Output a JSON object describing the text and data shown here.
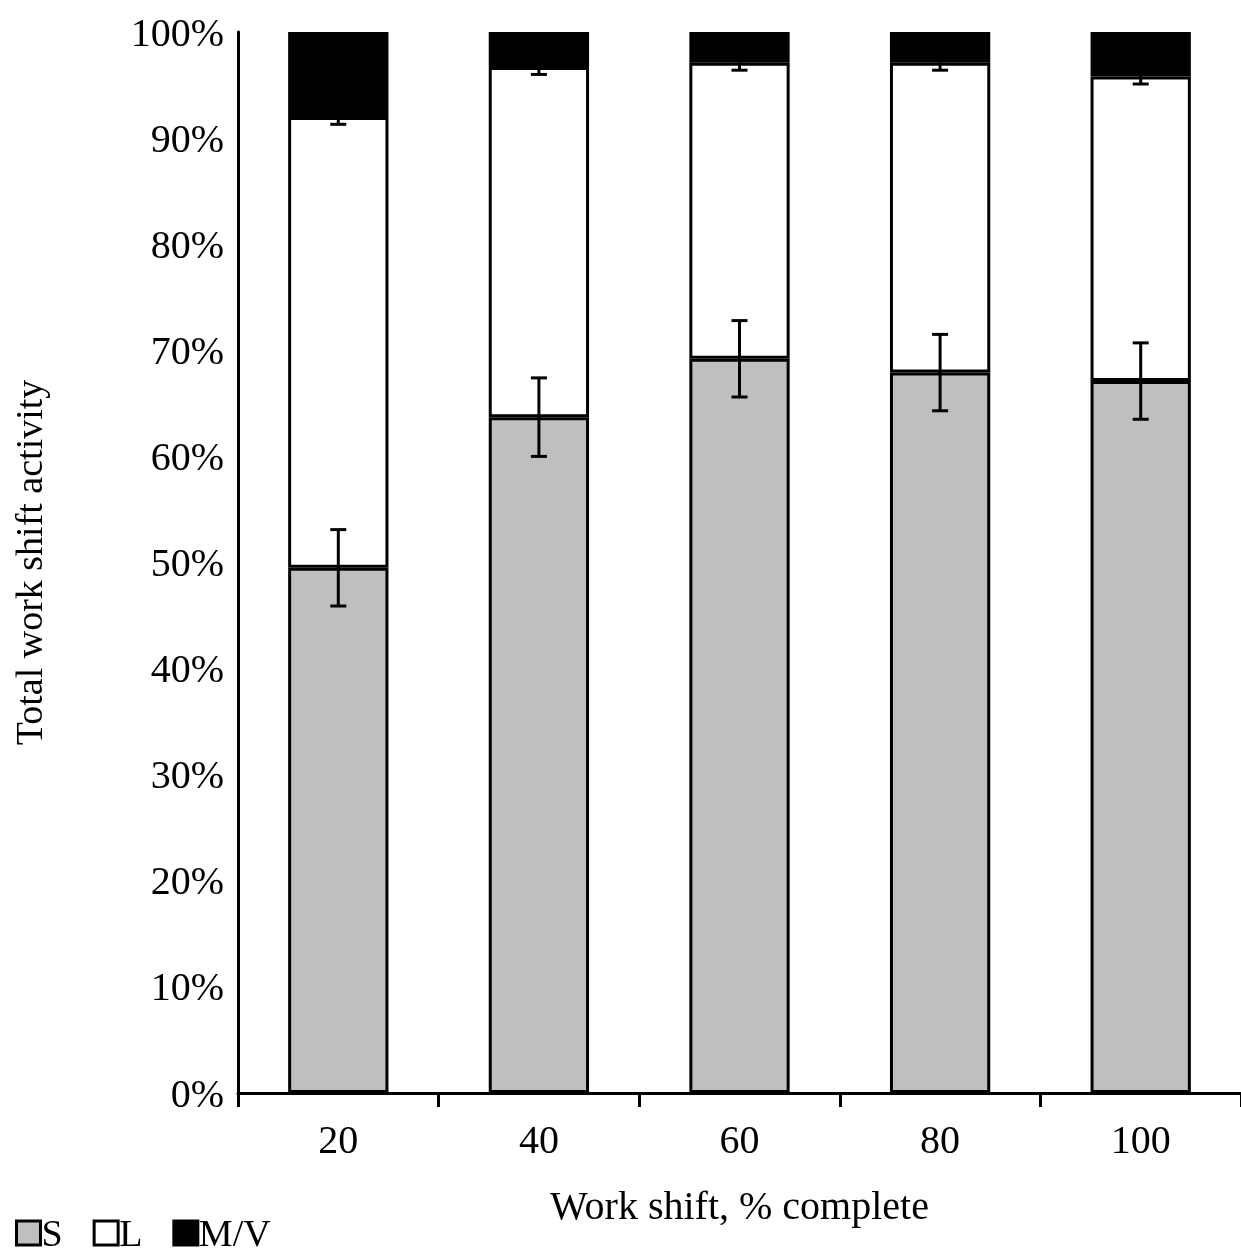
{
  "chart_data": {
    "type": "bar",
    "stacked": true,
    "xlabel": "Work shift, % complete",
    "ylabel": "Total work shift activity",
    "categories": [
      "20",
      "40",
      "60",
      "80",
      "100"
    ],
    "series": [
      {
        "name": "S",
        "color": "#bfbfbf",
        "values": [
          49.5,
          63.7,
          69.2,
          67.9,
          67.1
        ],
        "errors": [
          3.6,
          3.7,
          3.6,
          3.6,
          3.6
        ]
      },
      {
        "name": "L",
        "color": "#ffffff",
        "values": [
          42.5,
          33.0,
          27.9,
          29.2,
          28.7
        ],
        "errors": [
          0.7,
          0.7,
          0.7,
          0.7,
          0.7
        ]
      },
      {
        "name": "M/V",
        "color": "#000000",
        "values": [
          8.0,
          3.3,
          2.9,
          2.9,
          4.2
        ]
      }
    ],
    "ylim": [
      0,
      100
    ],
    "yticks": [
      {
        "value": 0,
        "label": "0%"
      },
      {
        "value": 10,
        "label": "10%"
      },
      {
        "value": 20,
        "label": "20%"
      },
      {
        "value": 30,
        "label": "30%"
      },
      {
        "value": 40,
        "label": "40%"
      },
      {
        "value": 50,
        "label": "50%"
      },
      {
        "value": 60,
        "label": "60%"
      },
      {
        "value": 70,
        "label": "70%"
      },
      {
        "value": 80,
        "label": "80%"
      },
      {
        "value": 90,
        "label": "90%"
      },
      {
        "value": 100,
        "label": "100%"
      }
    ],
    "grid": false,
    "legend": "bottom left"
  }
}
